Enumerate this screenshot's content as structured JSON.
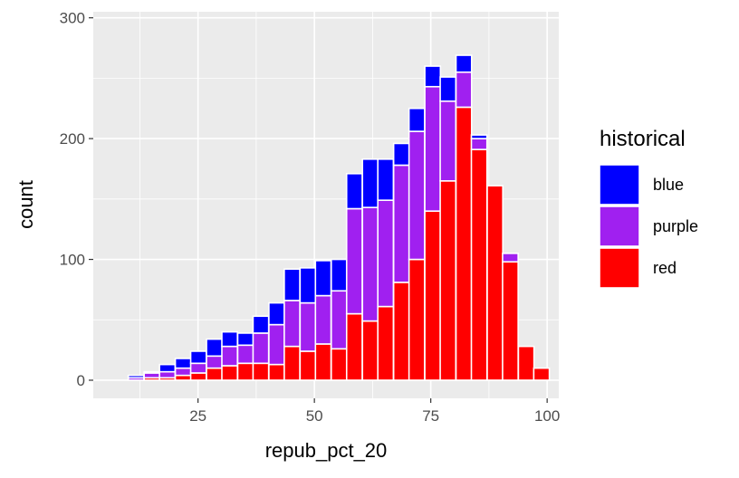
{
  "chart_data": {
    "type": "bar",
    "stacked": true,
    "title": "",
    "xlabel": "repub_pct_20",
    "ylabel": "count",
    "xlim": [
      2.5,
      102.5
    ],
    "ylim": [
      -15,
      305
    ],
    "x_ticks": [
      25,
      50,
      75,
      100
    ],
    "y_ticks": [
      0,
      100,
      200,
      300
    ],
    "grid": true,
    "legend": {
      "title": "historical",
      "position": "right"
    },
    "bin_width": 3.35,
    "x": [
      5.0,
      8.4,
      11.7,
      15.1,
      18.4,
      21.8,
      25.1,
      28.5,
      31.8,
      35.2,
      38.5,
      41.9,
      45.2,
      48.6,
      51.9,
      55.3,
      58.6,
      62.0,
      65.3,
      68.7,
      72.0,
      75.4,
      78.7,
      82.1,
      85.4,
      88.8,
      92.1,
      95.5,
      98.8
    ],
    "series": [
      {
        "name": "red",
        "color": "#ff0000",
        "values": [
          0,
          0,
          0,
          2,
          2,
          4,
          6,
          10,
          12,
          14,
          14,
          13,
          28,
          24,
          30,
          26,
          55,
          49,
          61,
          81,
          100,
          140,
          165,
          226,
          191,
          161,
          98,
          28,
          10
        ]
      },
      {
        "name": "purple",
        "color": "#a020f0",
        "values": [
          0,
          0,
          2,
          4,
          5,
          6,
          8,
          10,
          16,
          15,
          25,
          33,
          38,
          40,
          40,
          48,
          87,
          94,
          88,
          97,
          106,
          103,
          66,
          29,
          9,
          0,
          7,
          0,
          0
        ]
      },
      {
        "name": "blue",
        "color": "#0000ff",
        "values": [
          0,
          0,
          2,
          1,
          6,
          8,
          10,
          14,
          12,
          10,
          14,
          18,
          26,
          29,
          29,
          26,
          29,
          40,
          34,
          18,
          19,
          17,
          20,
          14,
          3,
          0,
          0,
          0,
          0
        ]
      }
    ]
  }
}
